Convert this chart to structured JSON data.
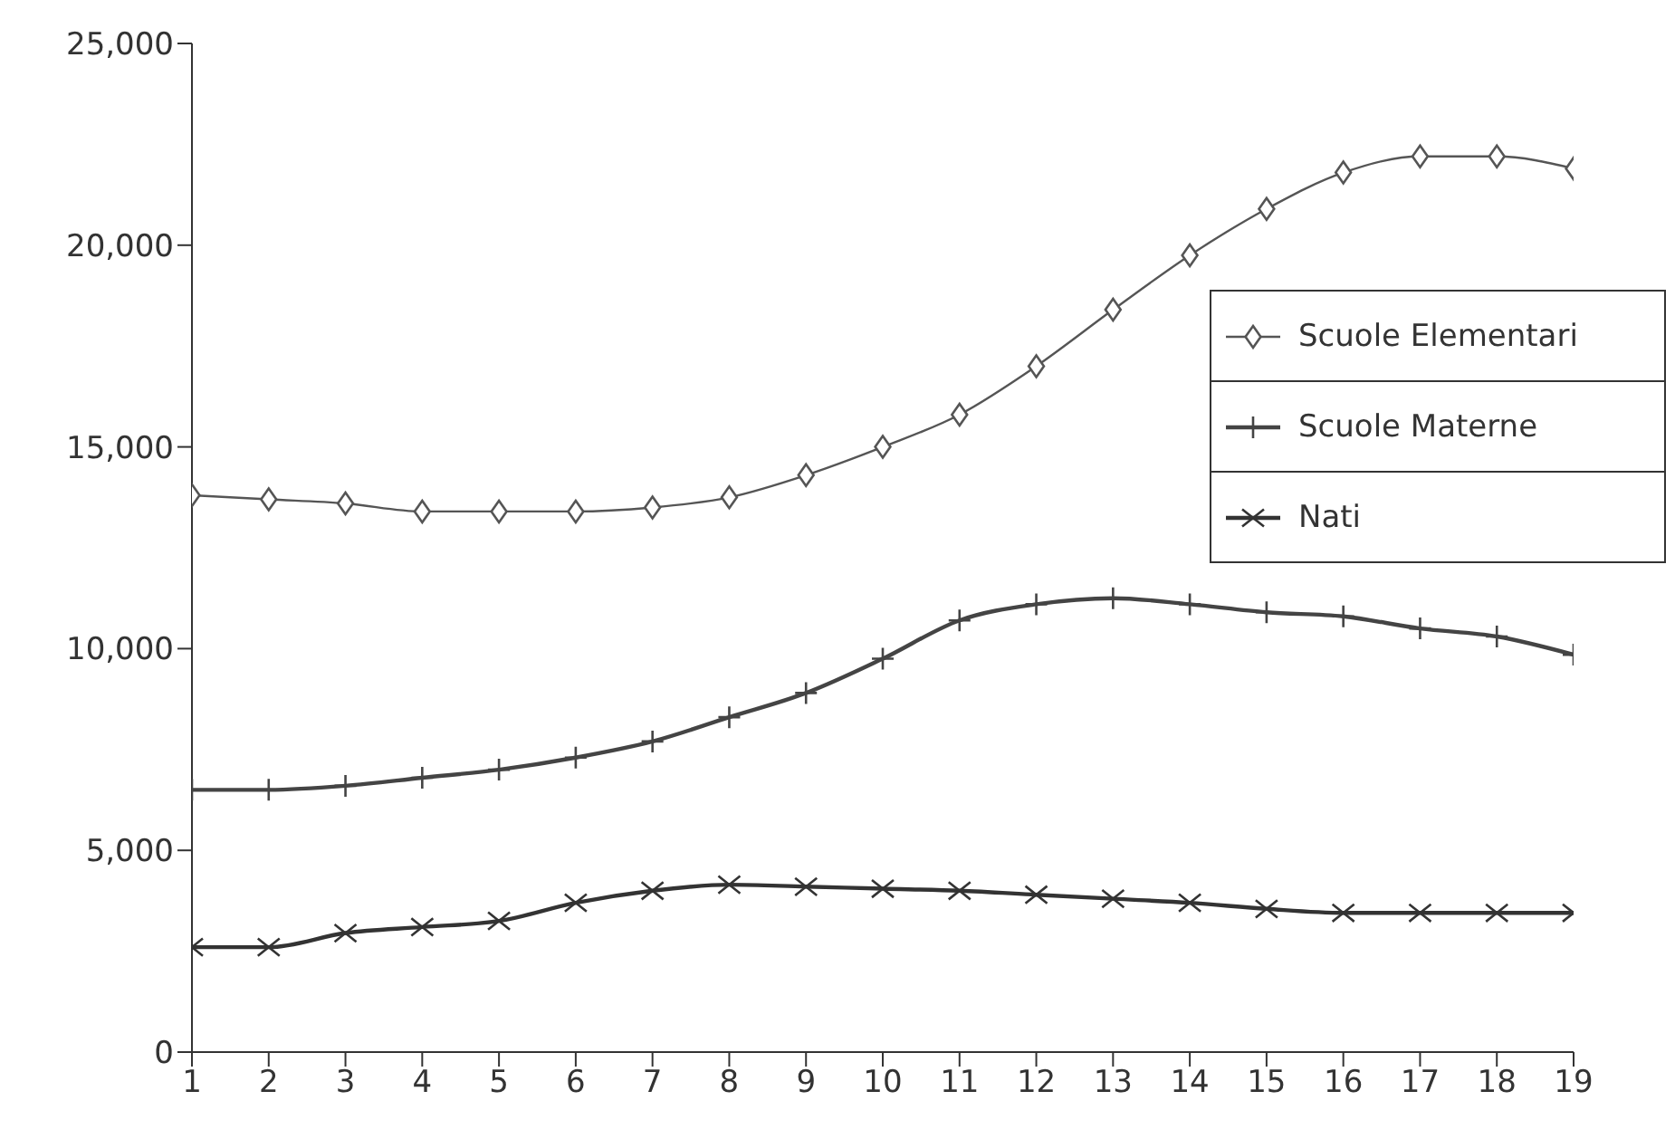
{
  "chart_data": {
    "type": "line",
    "x": [
      1,
      2,
      3,
      4,
      5,
      6,
      7,
      8,
      9,
      10,
      11,
      12,
      13,
      14,
      15,
      16,
      17,
      18,
      19
    ],
    "xlim": [
      1,
      19
    ],
    "xticks": [
      1,
      2,
      3,
      4,
      5,
      6,
      7,
      8,
      9,
      10,
      11,
      12,
      13,
      14,
      15,
      16,
      17,
      18,
      19
    ],
    "ylim": [
      0,
      25000
    ],
    "yticks": [
      {
        "value": 0,
        "label": "0"
      },
      {
        "value": 5000,
        "label": "5,000"
      },
      {
        "value": 10000,
        "label": "10,000"
      },
      {
        "value": 15000,
        "label": "15,000"
      },
      {
        "value": 20000,
        "label": "20,000"
      },
      {
        "value": 25000,
        "label": "25,000"
      }
    ],
    "grid": false,
    "legend": "right",
    "line_style": "solid",
    "series": [
      {
        "name": "Scuole Elementari",
        "color": "#555555",
        "marker": "diamond",
        "values": [
          13800,
          13700,
          13600,
          13400,
          13400,
          13400,
          13500,
          13750,
          14300,
          15000,
          15800,
          17000,
          18400,
          19750,
          20900,
          21800,
          22200,
          22200,
          21900
        ]
      },
      {
        "name": "Scuole Materne",
        "color": "#444444",
        "marker": "plus",
        "values": [
          6500,
          6500,
          6600,
          6800,
          7000,
          7300,
          7700,
          8300,
          8900,
          9750,
          10700,
          11100,
          11250,
          11100,
          10900,
          10800,
          10500,
          10300,
          9850
        ]
      },
      {
        "name": "Nati",
        "color": "#333333",
        "marker": "cross",
        "values": [
          2600,
          2600,
          2950,
          3100,
          3250,
          3700,
          4000,
          4150,
          4100,
          4050,
          4000,
          3900,
          3800,
          3700,
          3550,
          3450,
          3450,
          3450,
          3450
        ]
      }
    ]
  }
}
